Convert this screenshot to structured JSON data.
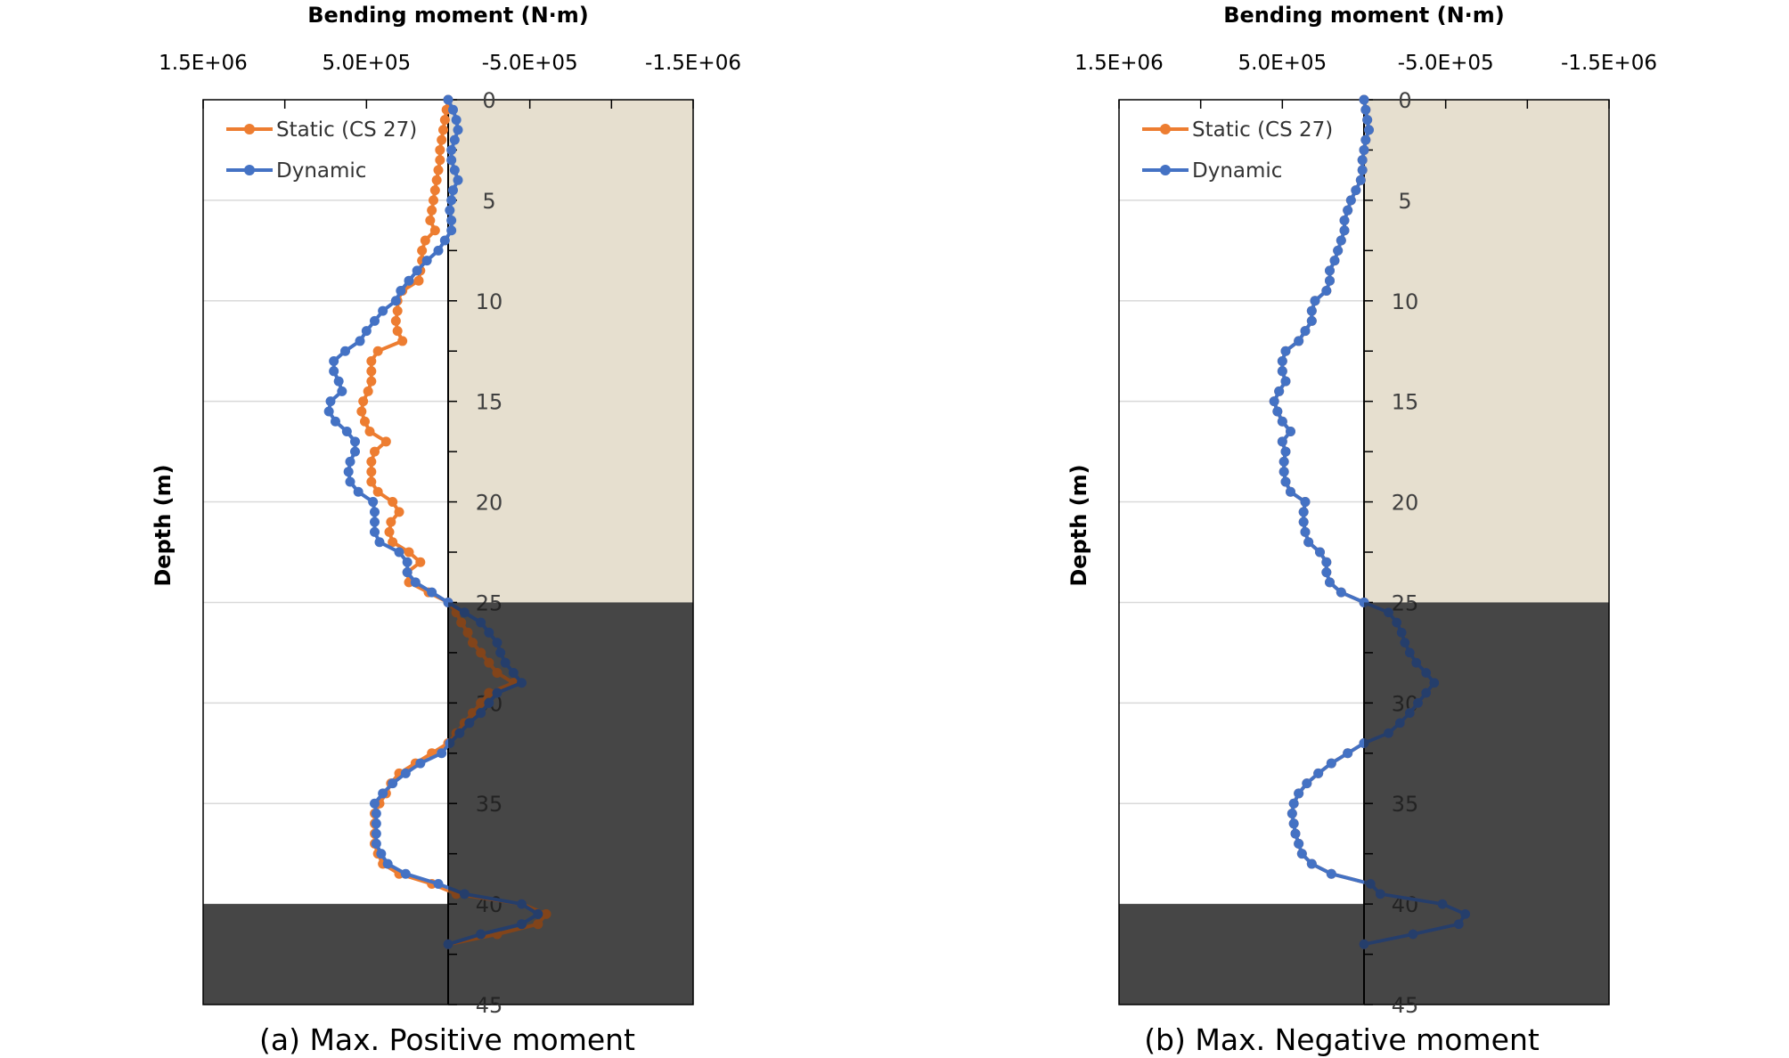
{
  "colors": {
    "static": "#ED7D31",
    "dynamic": "#4472C4",
    "soil_light": "#E6DFCF",
    "soil_dark": "#808080",
    "grid": "#D9D9D9"
  },
  "chart_data": [
    {
      "type": "line",
      "caption": "(a) Max. Positive moment",
      "xlabel": "Bending moment (N·m)",
      "ylabel": "Depth (m)",
      "xlim": [
        1500000,
        -1500000
      ],
      "ylim": [
        0,
        45
      ],
      "x_axis_position": "top",
      "x_tick_labels": [
        "1.5E+06",
        "5.0E+05",
        "-5.0E+05",
        "-1.5E+06"
      ],
      "y_tick_labels": [
        "0",
        "5",
        "10",
        "15",
        "20",
        "25",
        "30",
        "35",
        "40",
        "45"
      ],
      "grid": true,
      "legend": "top-left",
      "layers": [
        {
          "x_from": 0,
          "x_to": -1500000,
          "depth_from": 0,
          "depth_to": 25,
          "color": "light"
        },
        {
          "x_from": 0,
          "x_to": -1500000,
          "depth_from": 25,
          "depth_to": 45,
          "color": "dark"
        },
        {
          "x_from": 1500000,
          "x_to": 0,
          "depth_from": 40,
          "depth_to": 45,
          "color": "dark"
        }
      ],
      "series": [
        {
          "name": "Static (CS 27)",
          "color": "static",
          "y": [
            0,
            0.5,
            1,
            1.5,
            2,
            2.5,
            3,
            3.5,
            4,
            4.5,
            5,
            5.5,
            6,
            6.5,
            7,
            7.5,
            8,
            8.5,
            9,
            9.5,
            10,
            10.5,
            11,
            11.5,
            12,
            12.5,
            13,
            13.5,
            14,
            14.5,
            15,
            15.5,
            16,
            16.5,
            17,
            17.5,
            18,
            18.5,
            19,
            19.5,
            20,
            20.5,
            21,
            21.5,
            22,
            22.5,
            23,
            23.5,
            24,
            24.5,
            25,
            25.5,
            26,
            26.5,
            27,
            27.5,
            28,
            28.5,
            29,
            29.5,
            30,
            30.5,
            31,
            31.5,
            32,
            32.5,
            33,
            33.5,
            34,
            34.5,
            35,
            35.5,
            36,
            36.5,
            37,
            37.5,
            38,
            38.5,
            39,
            39.5,
            40,
            40.5,
            41,
            41.5,
            42
          ],
          "x": [
            0,
            10000,
            20000,
            30000,
            40000,
            50000,
            50000,
            60000,
            70000,
            80000,
            90000,
            100000,
            110000,
            80000,
            140000,
            160000,
            160000,
            170000,
            180000,
            280000,
            310000,
            310000,
            320000,
            310000,
            280000,
            430000,
            470000,
            470000,
            470000,
            490000,
            520000,
            530000,
            510000,
            480000,
            380000,
            450000,
            470000,
            470000,
            470000,
            430000,
            340000,
            300000,
            350000,
            360000,
            340000,
            240000,
            170000,
            250000,
            240000,
            120000,
            0,
            -50000,
            -80000,
            -120000,
            -150000,
            -200000,
            -250000,
            -300000,
            -400000,
            -250000,
            -200000,
            -150000,
            -100000,
            -50000,
            0,
            100000,
            200000,
            300000,
            350000,
            380000,
            420000,
            450000,
            450000,
            450000,
            450000,
            430000,
            400000,
            300000,
            100000,
            -50000,
            -450000,
            -600000,
            -550000,
            -300000,
            0
          ]
        },
        {
          "name": "Dynamic",
          "color": "dynamic",
          "y": [
            0,
            0.5,
            1,
            1.5,
            2,
            2.5,
            3,
            3.5,
            4,
            4.5,
            5,
            5.5,
            6,
            6.5,
            7,
            7.5,
            8,
            8.5,
            9,
            9.5,
            10,
            10.5,
            11,
            11.5,
            12,
            12.5,
            13,
            13.5,
            14,
            14.5,
            15,
            15.5,
            16,
            16.5,
            17,
            17.5,
            18,
            18.5,
            19,
            19.5,
            20,
            20.5,
            21,
            21.5,
            22,
            22.5,
            23,
            23.5,
            24,
            24.5,
            25,
            25.5,
            26,
            26.5,
            27,
            27.5,
            28,
            28.5,
            29,
            29.5,
            30,
            30.5,
            31,
            31.5,
            32,
            32.5,
            33,
            33.5,
            34,
            34.5,
            35,
            35.5,
            36,
            36.5,
            37,
            37.5,
            38,
            38.5,
            39,
            39.5,
            40,
            40.5,
            41,
            41.5,
            42
          ],
          "x": [
            0,
            -30000,
            -50000,
            -60000,
            -40000,
            -20000,
            -20000,
            -40000,
            -60000,
            -30000,
            -20000,
            -10000,
            -20000,
            -20000,
            20000,
            60000,
            130000,
            190000,
            240000,
            290000,
            320000,
            400000,
            450000,
            500000,
            540000,
            630000,
            700000,
            700000,
            670000,
            650000,
            720000,
            730000,
            690000,
            620000,
            570000,
            570000,
            600000,
            610000,
            600000,
            550000,
            460000,
            450000,
            450000,
            450000,
            420000,
            300000,
            250000,
            250000,
            200000,
            100000,
            0,
            -100000,
            -200000,
            -250000,
            -300000,
            -320000,
            -350000,
            -400000,
            -450000,
            -300000,
            -250000,
            -200000,
            -130000,
            -70000,
            -10000,
            40000,
            170000,
            260000,
            340000,
            400000,
            450000,
            440000,
            440000,
            440000,
            440000,
            410000,
            370000,
            260000,
            60000,
            -100000,
            -450000,
            -550000,
            -450000,
            -200000,
            0
          ]
        }
      ]
    },
    {
      "type": "line",
      "caption": "(b) Max. Negative moment",
      "xlabel": "Bending moment (N·m)",
      "ylabel": "Depth (m)",
      "xlim": [
        1500000,
        -1500000
      ],
      "ylim": [
        0,
        45
      ],
      "x_axis_position": "top",
      "x_tick_labels": [
        "1.5E+06",
        "5.0E+05",
        "-5.0E+05",
        "-1.5E+06"
      ],
      "y_tick_labels": [
        "0",
        "5",
        "10",
        "15",
        "20",
        "25",
        "30",
        "35",
        "40",
        "45"
      ],
      "grid": true,
      "legend": "top-left",
      "layers": [
        {
          "x_from": 0,
          "x_to": -1500000,
          "depth_from": 0,
          "depth_to": 25,
          "color": "light"
        },
        {
          "x_from": 0,
          "x_to": -1500000,
          "depth_from": 25,
          "depth_to": 45,
          "color": "dark"
        },
        {
          "x_from": 1500000,
          "x_to": 0,
          "depth_from": 40,
          "depth_to": 45,
          "color": "dark"
        }
      ],
      "series": [
        {
          "name": "Static (CS 27)",
          "color": "static",
          "y": [
            0,
            0.5,
            1,
            1.5,
            2,
            2.5,
            3,
            3.5,
            4,
            4.5,
            5,
            5.5,
            6,
            6.5,
            7,
            7.5,
            8,
            8.5,
            9,
            9.5,
            10,
            10.5,
            11,
            11.5,
            12,
            12.5,
            13,
            13.5,
            14,
            14.5,
            15,
            15.5,
            16,
            16.5,
            17,
            17.5,
            18,
            18.5,
            19,
            19.5,
            20,
            20.5,
            21,
            21.5,
            22,
            22.5,
            23,
            23.5,
            24,
            24.5,
            25,
            25.5,
            26,
            26.5,
            27,
            27.5,
            28,
            28.5,
            29,
            29.5,
            30,
            30.5,
            31,
            31.5,
            32,
            32.5,
            33,
            33.5,
            34,
            34.5,
            35,
            35.5,
            36,
            36.5,
            37,
            37.5,
            38,
            38.5,
            39,
            39.5,
            40,
            40.5,
            41,
            41.5,
            42
          ],
          "x": [
            0,
            -10000,
            -20000,
            -30000,
            -10000,
            0,
            10000,
            10000,
            20000,
            50000,
            80000,
            100000,
            120000,
            120000,
            140000,
            160000,
            180000,
            210000,
            210000,
            230000,
            300000,
            320000,
            320000,
            360000,
            400000,
            480000,
            500000,
            500000,
            480000,
            520000,
            550000,
            530000,
            500000,
            450000,
            500000,
            480000,
            490000,
            490000,
            480000,
            450000,
            360000,
            370000,
            370000,
            360000,
            340000,
            270000,
            230000,
            230000,
            210000,
            140000,
            0,
            -150000,
            -200000,
            -230000,
            -250000,
            -280000,
            -320000,
            -380000,
            -430000,
            -380000,
            -330000,
            -280000,
            -220000,
            -150000,
            0,
            100000,
            200000,
            280000,
            350000,
            400000,
            430000,
            440000,
            430000,
            420000,
            400000,
            380000,
            320000,
            200000,
            -40000,
            -100000,
            -480000,
            -620000,
            -580000,
            -300000,
            0
          ]
        },
        {
          "name": "Dynamic",
          "color": "dynamic",
          "y": [
            0,
            0.5,
            1,
            1.5,
            2,
            2.5,
            3,
            3.5,
            4,
            4.5,
            5,
            5.5,
            6,
            6.5,
            7,
            7.5,
            8,
            8.5,
            9,
            9.5,
            10,
            10.5,
            11,
            11.5,
            12,
            12.5,
            13,
            13.5,
            14,
            14.5,
            15,
            15.5,
            16,
            16.5,
            17,
            17.5,
            18,
            18.5,
            19,
            19.5,
            20,
            20.5,
            21,
            21.5,
            22,
            22.5,
            23,
            23.5,
            24,
            24.5,
            25,
            25.5,
            26,
            26.5,
            27,
            27.5,
            28,
            28.5,
            29,
            29.5,
            30,
            30.5,
            31,
            31.5,
            32,
            32.5,
            33,
            33.5,
            34,
            34.5,
            35,
            35.5,
            36,
            36.5,
            37,
            37.5,
            38,
            38.5,
            39,
            39.5,
            40,
            40.5,
            41,
            41.5,
            42
          ],
          "x": [
            0,
            -10000,
            -20000,
            -30000,
            -10000,
            0,
            10000,
            10000,
            20000,
            50000,
            80000,
            100000,
            120000,
            120000,
            140000,
            160000,
            180000,
            210000,
            210000,
            230000,
            300000,
            320000,
            320000,
            360000,
            400000,
            480000,
            500000,
            500000,
            480000,
            520000,
            550000,
            530000,
            500000,
            450000,
            500000,
            480000,
            490000,
            490000,
            480000,
            450000,
            360000,
            370000,
            370000,
            360000,
            340000,
            270000,
            230000,
            230000,
            210000,
            140000,
            0,
            -150000,
            -200000,
            -230000,
            -250000,
            -280000,
            -320000,
            -380000,
            -430000,
            -380000,
            -330000,
            -280000,
            -220000,
            -150000,
            0,
            100000,
            200000,
            280000,
            350000,
            400000,
            430000,
            440000,
            430000,
            420000,
            400000,
            380000,
            320000,
            200000,
            -40000,
            -100000,
            -480000,
            -620000,
            -580000,
            -300000,
            0
          ]
        }
      ]
    }
  ]
}
